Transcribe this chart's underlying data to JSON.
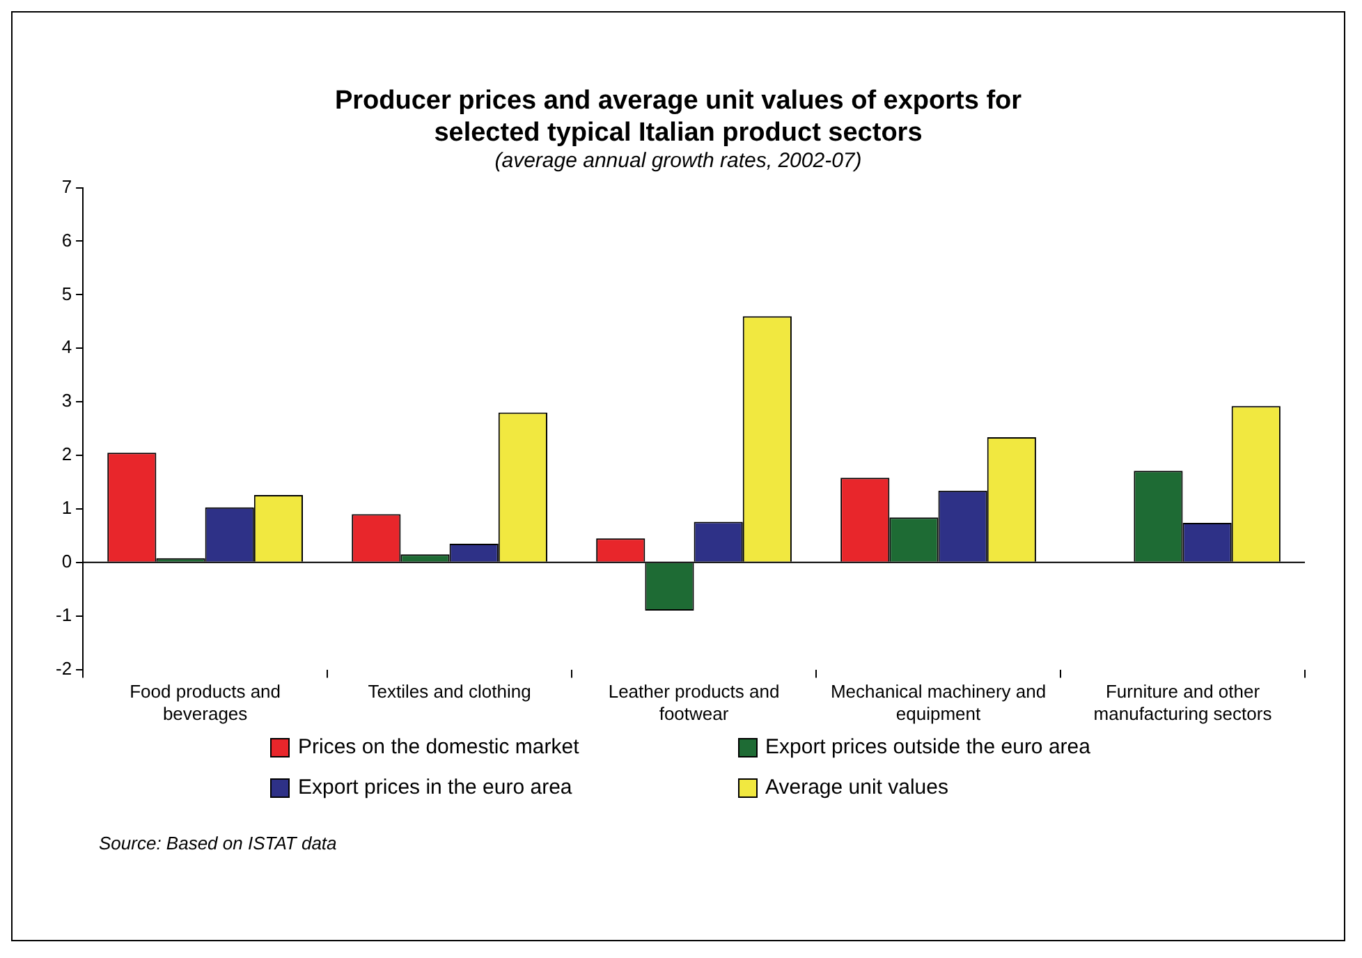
{
  "chart_data": {
    "type": "bar",
    "title": "Producer prices and average unit values of exports for selected typical Italian product sectors",
    "subtitle": "(average annual growth rates, 2002-07)",
    "categories": [
      "Food products and beverages",
      "Textiles and clothing",
      "Leather products and footwear",
      "Mechanical machinery and equipment",
      "Furniture and other manufacturing sectors"
    ],
    "series": [
      {
        "name": "Prices on the domestic market",
        "color": "#e8262b",
        "values": [
          2.05,
          0.9,
          0.45,
          1.58,
          null
        ]
      },
      {
        "name": "Export prices outside the euro area",
        "color": "#1e6b34",
        "values": [
          0.08,
          0.15,
          -0.9,
          0.84,
          1.71
        ]
      },
      {
        "name": "Export prices in the euro area",
        "color": "#2e3187",
        "values": [
          1.03,
          0.35,
          0.76,
          1.34,
          0.74
        ]
      },
      {
        "name": "Average unit values",
        "color": "#f1e840",
        "values": [
          1.26,
          2.8,
          4.6,
          2.34,
          2.92
        ]
      }
    ],
    "ref_lines": [
      {
        "axis": "y",
        "value": 0,
        "color": "#000000",
        "line_style": "solid"
      }
    ],
    "ylim": [
      -2,
      7
    ],
    "yticks": [
      -2,
      -1,
      0,
      1,
      2,
      3,
      4,
      5,
      6,
      7
    ],
    "grid": false,
    "legend": "bottom",
    "annotations": [
      "Source: Based on ISTAT data"
    ]
  }
}
